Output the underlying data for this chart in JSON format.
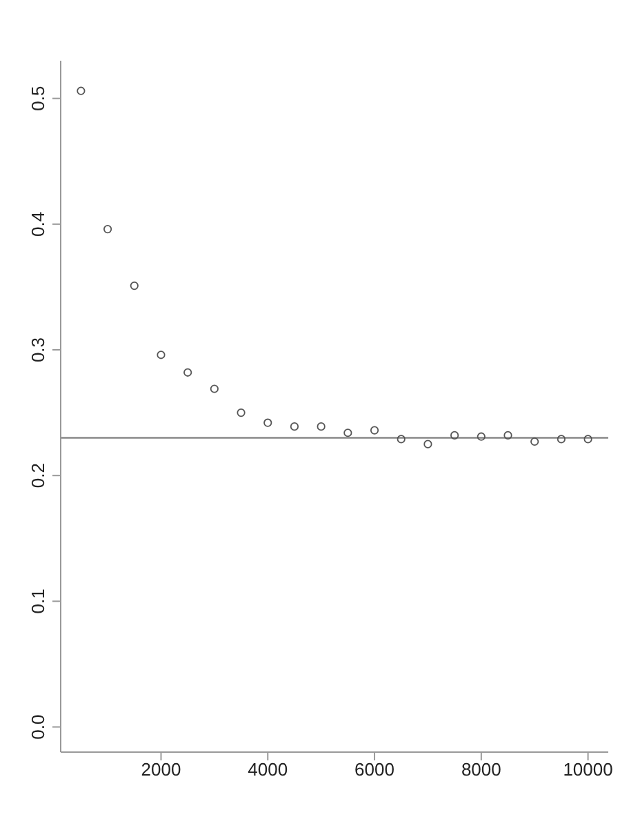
{
  "chart_data": {
    "type": "scatter",
    "x": [
      500,
      1000,
      1500,
      2000,
      2500,
      3000,
      3500,
      4000,
      4500,
      5000,
      5500,
      6000,
      6500,
      7000,
      7500,
      8000,
      8500,
      9000,
      9500,
      10000
    ],
    "series": [
      {
        "color": "#555555",
        "values": [
          0.506,
          0.396,
          0.351,
          0.296,
          0.282,
          0.269,
          0.25,
          0.242,
          0.239,
          0.239,
          0.234,
          0.236,
          0.229,
          0.225,
          0.232,
          0.231,
          0.232,
          0.227,
          0.229,
          0.229
        ]
      }
    ],
    "xlim": [
      120,
      10380
    ],
    "xticks": [
      2000,
      4000,
      6000,
      8000,
      10000
    ],
    "ylim": [
      -0.02,
      0.53
    ],
    "yticks": [
      {
        "value": 0,
        "label": "0.0"
      },
      0.1,
      0.2,
      0.3,
      0.4,
      0.5
    ],
    "ref_lines": [
      {
        "axis": "y",
        "value": 0.23,
        "color": "#888888"
      }
    ],
    "marker": "circle",
    "grid": false,
    "legend": false
  }
}
